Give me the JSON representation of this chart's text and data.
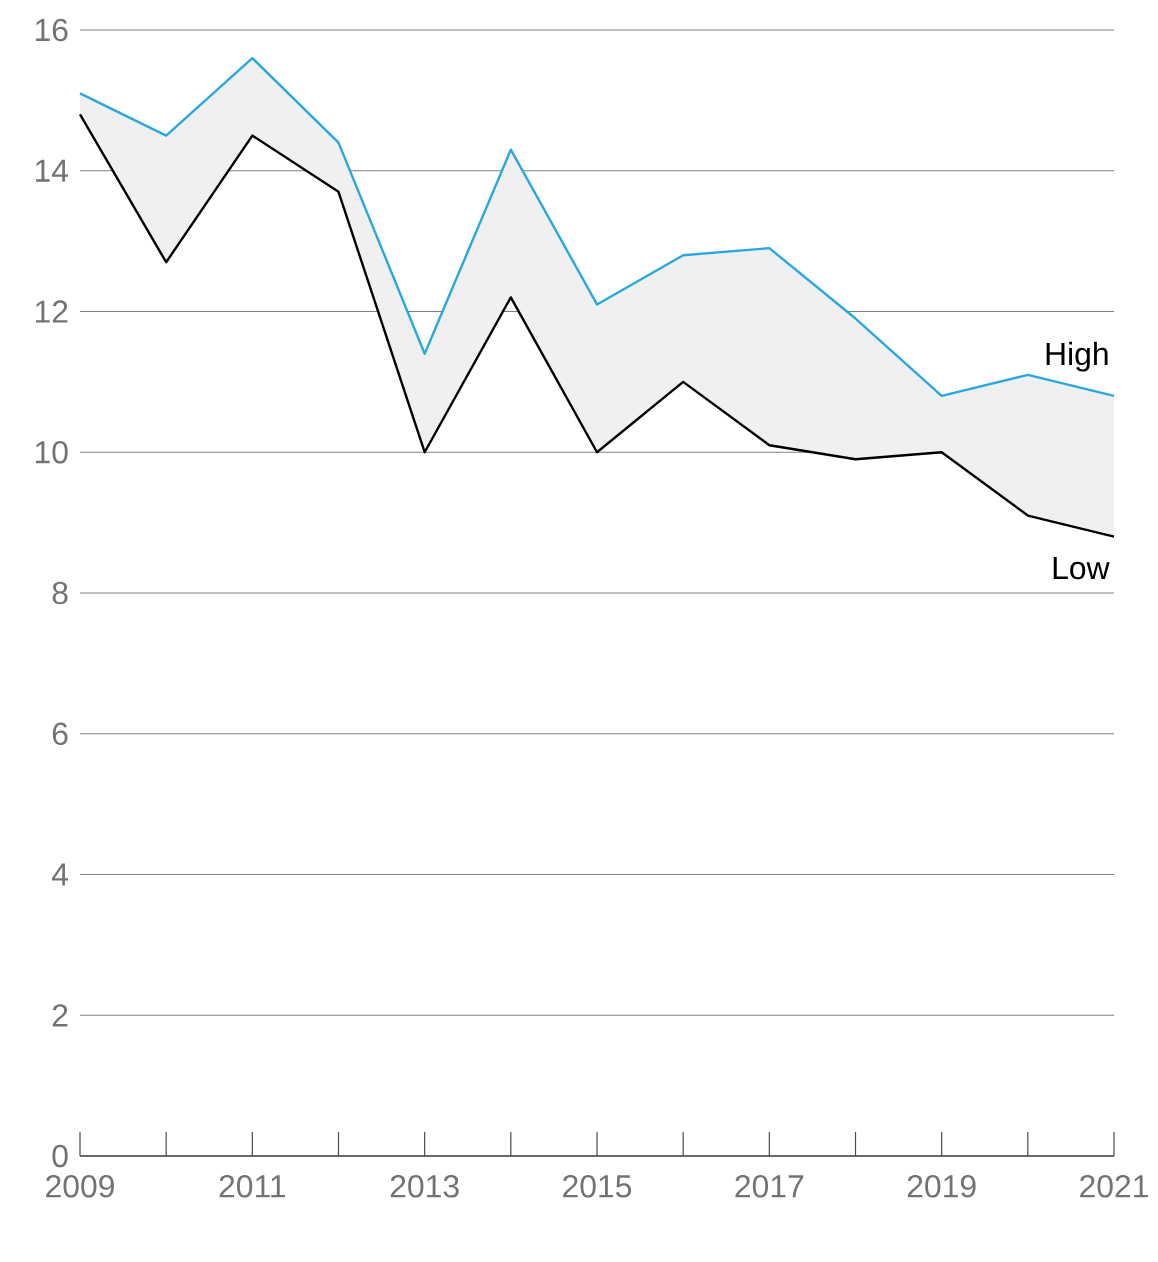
{
  "chart_data": {
    "type": "line",
    "x": [
      2009,
      2010,
      2011,
      2012,
      2013,
      2014,
      2015,
      2016,
      2017,
      2018,
      2019,
      2020,
      2021
    ],
    "series": [
      {
        "name": "High",
        "color": "#29a8e0",
        "values": [
          15.1,
          14.5,
          15.6,
          14.4,
          11.4,
          14.3,
          12.1,
          12.8,
          12.9,
          11.9,
          10.8,
          11.1,
          10.8
        ],
        "lower": [
          14.8,
          12.7,
          14.5,
          13.7,
          10.0,
          12.2,
          10.0,
          11.0,
          10.1,
          9.9,
          10.0,
          9.1,
          8.8
        ],
        "upper": [
          15.1,
          14.5,
          15.6,
          14.4,
          11.4,
          14.3,
          12.1,
          12.8,
          12.9,
          11.9,
          10.8,
          11.1,
          10.8
        ]
      },
      {
        "name": "Low",
        "color": "#000000",
        "values": [
          14.8,
          12.7,
          14.5,
          13.7,
          10.0,
          12.2,
          10.0,
          11.0,
          10.1,
          9.9,
          10.0,
          9.1,
          8.8
        ]
      }
    ],
    "xlim": [
      2009,
      2021
    ],
    "xticks": [
      2009,
      {
        "value": 2010,
        "label": null
      },
      2011,
      {
        "value": 2012,
        "label": null
      },
      2013,
      {
        "value": 2014,
        "label": null
      },
      2015,
      {
        "value": 2016,
        "label": null
      },
      2017,
      {
        "value": 2018,
        "label": null
      },
      2019,
      {
        "value": 2020,
        "label": null
      },
      2021
    ],
    "ylim": [
      0,
      16
    ],
    "yticks": [
      0,
      2,
      4,
      6,
      8,
      10,
      12,
      14,
      16
    ],
    "grid": "y",
    "legend": false,
    "marker": "none",
    "line_style": "solid"
  }
}
